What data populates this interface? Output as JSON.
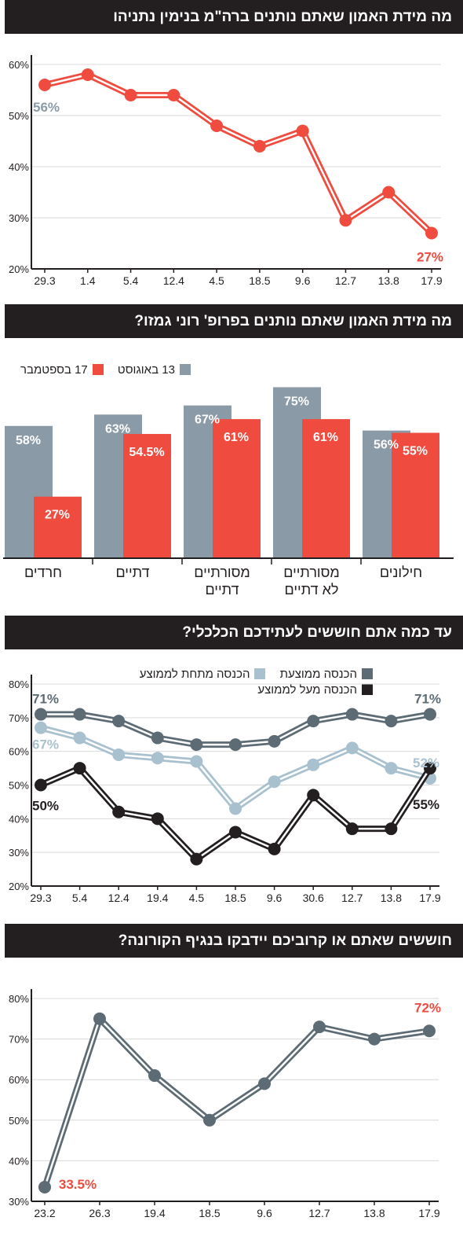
{
  "colors": {
    "red": "#ef4b3f",
    "gray": "#8a9aa6",
    "dark_gray": "#5d6b74",
    "light_blue": "#a9c1cf",
    "black": "#231f20",
    "header_bg": "#231f20"
  },
  "chart_data": [
    {
      "type": "line",
      "title": "מה מידת האמון שאתם נותנים ברה\"מ בנימין נתניהו",
      "categories": [
        "29.3",
        "1.4",
        "5.4",
        "12.4",
        "4.5",
        "18.5",
        "9.6",
        "12.7",
        "13.8",
        "17.9"
      ],
      "series": [
        {
          "values": [
            56,
            58,
            54,
            54,
            48,
            44,
            47,
            29.5,
            35,
            27
          ],
          "color": "#ef4b3f"
        }
      ],
      "annotations": [
        {
          "index": 0,
          "text": "56%",
          "color": "#8a9aa6"
        },
        {
          "index": 9,
          "text": "27%",
          "color": "#ef4b3f"
        }
      ],
      "y_ticks": [
        "20%",
        "30%",
        "40%",
        "50%",
        "60%"
      ],
      "ylim": [
        20,
        60
      ]
    },
    {
      "type": "bar",
      "title": "מה מידת האמון שאתם נותנים בפרופ' רוני גמזו?",
      "categories": [
        "חרדים",
        "דתיים",
        "מסורתיים דתיים",
        "מסורתיים לא דתיים",
        "חילונים"
      ],
      "series": [
        {
          "name": "13 באוגוסט",
          "values": [
            58,
            63,
            67,
            75,
            56
          ],
          "labels": [
            "58%",
            "63%",
            "67%",
            "75%",
            "56%"
          ],
          "color": "#8a9aa6"
        },
        {
          "name": "17 בספטמבר",
          "values": [
            27,
            54.5,
            61,
            61,
            55
          ],
          "labels": [
            "27%",
            "54.5%",
            "61%",
            "61%",
            "55%"
          ],
          "color": "#ef4b3f"
        }
      ],
      "legend_position": "top-left"
    },
    {
      "type": "line",
      "title": "עד כמה אתם חוששים לעתידכם הכלכלי?",
      "categories": [
        "29.3",
        "5.4",
        "12.4",
        "19.4",
        "4.5",
        "18.5",
        "9.6",
        "30.6",
        "12.7",
        "13.8",
        "17.9"
      ],
      "series": [
        {
          "name": "הכנסה ממוצעת",
          "values": [
            71,
            71,
            69,
            64,
            62,
            62,
            63,
            69,
            71,
            69,
            71
          ],
          "color": "#5d6b74"
        },
        {
          "name": "הכנסה מתחת לממוצע",
          "values": [
            67,
            64,
            59,
            58,
            57,
            43,
            51,
            56,
            61,
            55,
            52
          ],
          "color": "#a9c1cf"
        },
        {
          "name": "הכנסה מעל לממוצע",
          "values": [
            50,
            55,
            42,
            40,
            28,
            36,
            31,
            47,
            37,
            37,
            55
          ],
          "color": "#231f20"
        }
      ],
      "annotations": [
        {
          "series": 0,
          "index": 0,
          "text": "71%"
        },
        {
          "series": 0,
          "index": 10,
          "text": "71%"
        },
        {
          "series": 1,
          "index": 0,
          "text": "67%"
        },
        {
          "series": 1,
          "index": 10,
          "text": "52%"
        },
        {
          "series": 2,
          "index": 0,
          "text": "50%"
        },
        {
          "series": 2,
          "index": 10,
          "text": "55%"
        }
      ],
      "y_ticks": [
        "20%",
        "30%",
        "40%",
        "50%",
        "60%",
        "70%",
        "80%"
      ],
      "ylim": [
        20,
        80
      ],
      "legend_position": "top"
    },
    {
      "type": "line",
      "title": "חוששים שאתם או קרוביכם יידבקו בנגיף הקורונה?",
      "categories": [
        "23.2",
        "26.3",
        "19.4",
        "18.5",
        "9.6",
        "12.7",
        "13.8",
        "17.9"
      ],
      "series": [
        {
          "values": [
            33.5,
            75,
            61,
            50,
            59,
            73,
            70,
            72
          ],
          "color": "#5d6b74"
        }
      ],
      "annotations": [
        {
          "index": 0,
          "text": "33.5%",
          "color": "#ef4b3f"
        },
        {
          "index": 7,
          "text": "72%",
          "color": "#ef4b3f"
        }
      ],
      "y_ticks": [
        "30%",
        "40%",
        "50%",
        "60%",
        "70%",
        "80%"
      ],
      "ylim": [
        30,
        80
      ]
    }
  ]
}
